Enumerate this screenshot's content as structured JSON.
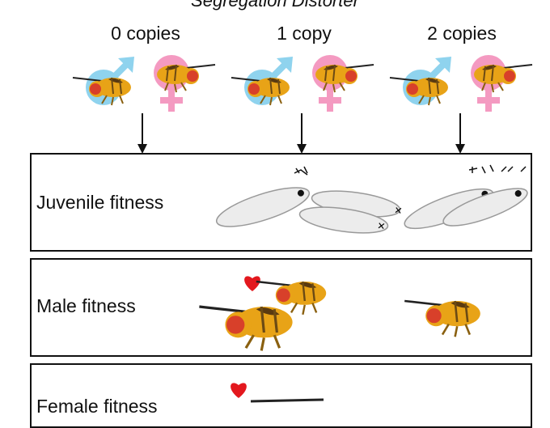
{
  "title": "Segregation Distorter",
  "columns": [
    {
      "label": "0 copies"
    },
    {
      "label": "1 copy"
    },
    {
      "label": "2 copies"
    }
  ],
  "panels": [
    {
      "label": "Juvenile fitness"
    },
    {
      "label": "Male fitness"
    },
    {
      "label": "Female fitness"
    }
  ],
  "colors": {
    "male_symbol": "#8fd3ee",
    "female_symbol": "#f49ac1",
    "fly_body": "#e8a317",
    "fly_eye": "#d8402a",
    "heart": "#e3181e",
    "larva_fill": "#ececec"
  },
  "icons": [
    "male-symbol-icon",
    "female-symbol-icon",
    "fly-icon",
    "heart-icon",
    "larva-icon",
    "down-arrow-icon"
  ]
}
